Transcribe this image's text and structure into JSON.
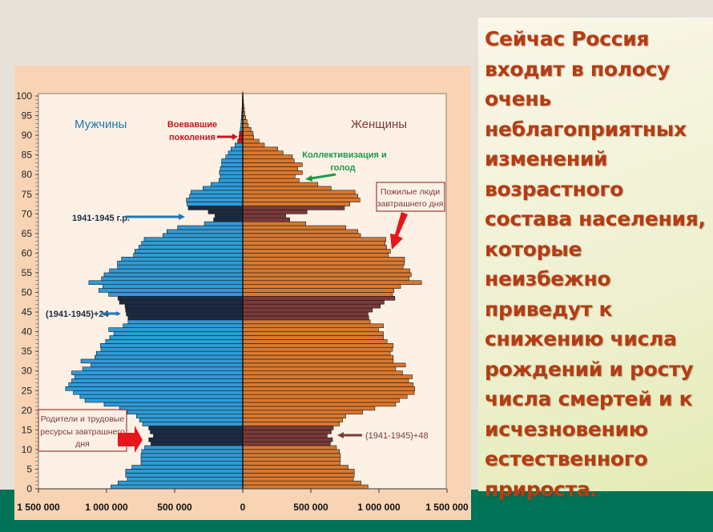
{
  "slide_text": "Сейчас Россия входит в полосу очень неблагоприятных изменений возрастного состава населения, которые неизбежно приведут к снижению числа рождений и росту числа смертей и к исчезновению естественного прироста.",
  "colors": {
    "male": "#2e9bd8",
    "male_dark": "#1b2b44",
    "female": "#d9782e",
    "female_dark": "#7b3a38",
    "war": "#d0141c",
    "text": "#b53c12"
  },
  "chart_data": {
    "type": "bar",
    "orientation": "population-pyramid",
    "ylabel": "",
    "xlabel": "",
    "ylim": [
      0,
      100
    ],
    "y_ticks": [
      "0",
      "5",
      "10",
      "15",
      "20",
      "25",
      "30",
      "35",
      "40",
      "45",
      "50",
      "55",
      "60",
      "65",
      "70",
      "75",
      "80",
      "85",
      "90",
      "95",
      "100"
    ],
    "xlim": [
      -1500000,
      1500000
    ],
    "x_ticks": [
      {
        "v": -1500000,
        "label": "1 500 000"
      },
      {
        "v": -1000000,
        "label": "1 000 000"
      },
      {
        "v": -500000,
        "label": "500 000"
      },
      {
        "v": 0,
        "label": "0"
      },
      {
        "v": 500000,
        "label": "500 000"
      },
      {
        "v": 1000000,
        "label": "1 000 000"
      },
      {
        "v": 1500000,
        "label": "1 500 000"
      }
    ],
    "ages_start": 0,
    "series": [
      {
        "name": "Мужчины",
        "values_thousands": [
          968,
          916,
          848,
          860,
          860,
          814,
          747,
          747,
          747,
          742,
          720,
          674,
          690,
          656,
          679,
          690,
          735,
          758,
          780,
          848,
          905,
          1018,
          1158,
          1195,
          1244,
          1301,
          1278,
          1256,
          1233,
          1256,
          1176,
          1115,
          1188,
          1086,
          1075,
          1041,
          1045,
          1007,
          977,
          946,
          984,
          878,
          842,
          842,
          855,
          860,
          864,
          905,
          916,
          984,
          1057,
          1027,
          1130,
          1037,
          1018,
          978,
          920,
          920,
          890,
          802,
          792,
          763,
          743,
          724,
          586,
          557,
          478,
          282,
          214,
          204,
          253,
          400,
          410,
          414,
          390,
          380,
          292,
          233,
          175,
          165,
          171,
          165,
          155,
          155,
          125,
          106,
          86,
          57,
          37,
          27,
          24,
          18,
          14,
          12,
          10,
          8,
          6,
          4,
          3,
          2,
          1
        ]
      },
      {
        "name": "Женщины",
        "values_thousands": [
          920,
          868,
          812,
          819,
          819,
          774,
          715,
          717,
          717,
          710,
          688,
          643,
          659,
          620,
          650,
          665,
          710,
          733,
          756,
          880,
          970,
          1123,
          1150,
          1207,
          1259,
          1263,
          1252,
          1218,
          1245,
          1173,
          1123,
          1195,
          1105,
          1105,
          1083,
          1100,
          1105,
          1060,
          1033,
          1033,
          997,
          1033,
          936,
          925,
          920,
          952,
          1010,
          1038,
          1117,
          1100,
          1110,
          1159,
          1312,
          1221,
          1237,
          1227,
          1178,
          1188,
          1188,
          1070,
          1084,
          1057,
          1045,
          1051,
          865,
          845,
          757,
          463,
          345,
          316,
          472,
          747,
          786,
          861,
          845,
          825,
          649,
          551,
          414,
          384,
          437,
          404,
          437,
          378,
          365,
          296,
          257,
          159,
          120,
          80,
          76,
          61,
          41,
          31,
          22,
          15,
          12,
          8,
          5,
          3,
          2
        ]
      }
    ],
    "highlight_bands": [
      {
        "ages": [
          11,
          15
        ],
        "label": "(1941-1945)+48"
      },
      {
        "ages": [
          43,
          48
        ],
        "label": "(1941-1945)+24"
      },
      {
        "ages": [
          68,
          71
        ],
        "label": "1941-1945 г.р."
      },
      {
        "ages": [
          88,
          90
        ],
        "label": "Воевавшие поколения"
      }
    ],
    "legend": {
      "male": "Мужчины",
      "female": "Женщины"
    },
    "annotations": {
      "war": "Воевавшие поколения",
      "war_l1": "Воевавшие",
      "war_l2": "поколения",
      "coll_l1": "Коллективизация и",
      "coll_l2": "голод",
      "elder_l1": "Пожилые люди",
      "elder_l2": "завтрашнего дня",
      "born": "1941-1945 г.р.",
      "plus24": "(1941-1945)+24",
      "plus48": "(1941-1945)+48",
      "parents_l1": "Родители и трудовые",
      "parents_l2": "ресурсы  завтрашнего",
      "parents_l3": "дня"
    }
  }
}
